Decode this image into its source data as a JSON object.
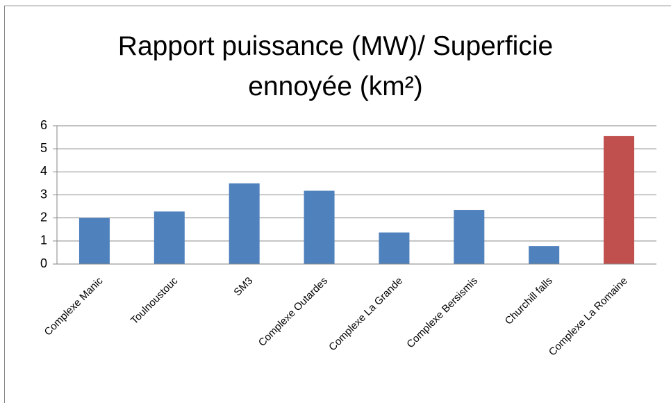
{
  "chart_data": {
    "type": "bar",
    "title": "Rapport puissance (MW)/ Superficie ennoyée (km²)",
    "categories": [
      "Complexe Manic",
      "Toulnoustouc",
      "SM3",
      "Complexe Outardes",
      "Complexe La Grande",
      "Complexe Bersismis",
      "Churchill falls",
      "Complexe La Romaine"
    ],
    "values": [
      2.0,
      2.28,
      3.5,
      3.18,
      1.37,
      2.35,
      0.78,
      5.55
    ],
    "colors": [
      "#4f81bd",
      "#4f81bd",
      "#4f81bd",
      "#4f81bd",
      "#4f81bd",
      "#4f81bd",
      "#4f81bd",
      "#c0504d"
    ],
    "ylim": [
      0,
      6
    ],
    "yticks": [
      0,
      1,
      2,
      3,
      4,
      5,
      6
    ],
    "grid": true
  }
}
